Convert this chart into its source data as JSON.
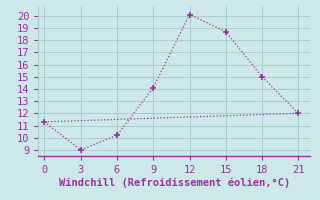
{
  "line1_x": [
    0,
    3,
    6,
    9,
    12,
    15,
    18,
    21
  ],
  "line1_y": [
    11.3,
    9.0,
    10.2,
    14.1,
    20.1,
    18.7,
    15.0,
    12.0
  ],
  "line2_x": [
    0,
    21
  ],
  "line2_y": [
    11.3,
    12.0
  ],
  "line_color": "#993399",
  "bg_color": "#cce8e8",
  "grid_color": "#aacccc",
  "xlabel": "Windchill (Refroidissement éolien,°C)",
  "xlabel_color": "#993399",
  "ylabel_ticks": [
    9,
    10,
    11,
    12,
    13,
    14,
    15,
    16,
    17,
    18,
    19,
    20
  ],
  "xticks": [
    0,
    3,
    6,
    9,
    12,
    15,
    18,
    21
  ],
  "xlim": [
    -0.5,
    22
  ],
  "ylim": [
    8.5,
    20.8
  ],
  "marker": "+",
  "marker_size": 5,
  "line_width": 0.9,
  "font_size": 7.5,
  "label_font_size": 7.5
}
